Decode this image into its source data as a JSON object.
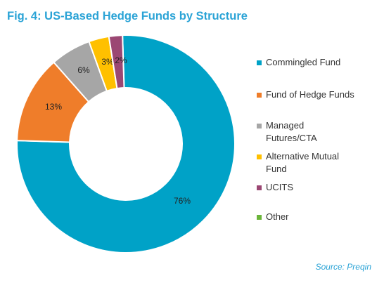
{
  "title": "Fig. 4: US-Based Hedge Funds by Structure",
  "source": "Source: Preqin",
  "colors": {
    "Commingled Fund": "#00a2c7",
    "Fund of Hedge Funds": "#ef7d2a",
    "Managed Futures/CTA": "#a6a6a6",
    "Alternative Mutual Fund": "#ffc000",
    "UCITS": "#9b4773",
    "Other": "#6bb53a"
  },
  "legend": [
    {
      "label": "Commingled Fund",
      "display": "Commingled Fund",
      "color": "#00a2c7"
    },
    {
      "label": "Fund of Hedge Funds",
      "display": "Fund of Hedge Funds",
      "color": "#ef7d2a"
    },
    {
      "label": "Managed Futures/CTA",
      "display": "Managed\nFutures/CTA",
      "color": "#a6a6a6"
    },
    {
      "label": "Alternative Mutual Fund",
      "display": "Alternative Mutual\nFund",
      "color": "#ffc000"
    },
    {
      "label": "UCITS",
      "display": "UCITS",
      "color": "#9b4773"
    },
    {
      "label": "Other",
      "display": "Other",
      "color": "#6bb53a"
    }
  ],
  "chart_data": {
    "type": "pie",
    "donut": true,
    "title": "Fig. 4: US-Based Hedge Funds by Structure",
    "categories": [
      "Commingled Fund",
      "Fund of Hedge Funds",
      "Managed Futures/CTA",
      "Alternative Mutual Fund",
      "UCITS",
      "Other"
    ],
    "values": [
      76,
      13,
      6,
      3,
      2,
      0
    ],
    "labels": [
      "76%",
      "13%",
      "6%",
      "3%",
      "2%",
      ""
    ],
    "unit": "%",
    "legend_position": "right"
  }
}
